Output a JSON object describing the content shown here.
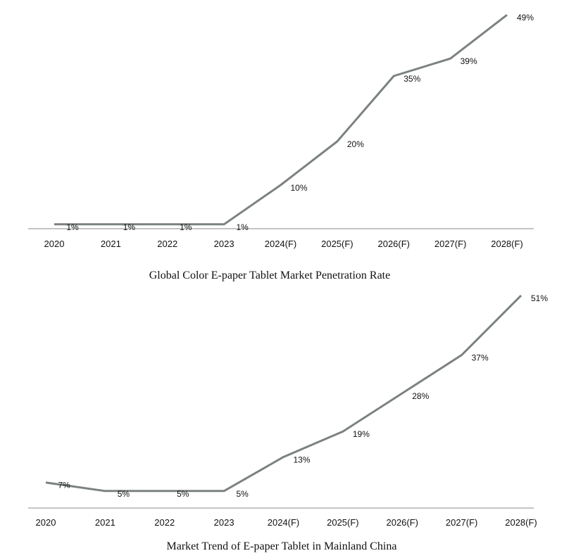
{
  "chart_data": [
    {
      "type": "line",
      "title": "Global Color E-paper Tablet Market Penetration Rate",
      "categories": [
        "2020",
        "2021",
        "2022",
        "2023",
        "2024(F)",
        "2025(F)",
        "2026(F)",
        "2027(F)",
        "2028(F)"
      ],
      "values": [
        1,
        1,
        1,
        1,
        10,
        20,
        35,
        39,
        49
      ],
      "data_labels": [
        "1%",
        "1%",
        "1%",
        "1%",
        "10%",
        "20%",
        "35%",
        "39%",
        "49%"
      ],
      "unit": "%",
      "ylim": [
        0,
        50
      ],
      "grid": false,
      "line_color": "#7b8280"
    },
    {
      "type": "line",
      "title": "Market Trend of E-paper Tablet in Mainland China",
      "categories": [
        "2020",
        "2021",
        "2022",
        "2023",
        "2024(F)",
        "2025(F)",
        "2026(F)",
        "2027(F)",
        "2028(F)"
      ],
      "values": [
        7,
        5,
        5,
        5,
        13,
        19,
        28,
        37,
        51
      ],
      "data_labels": [
        "7%",
        "5%",
        "5%",
        "5%",
        "13%",
        "19%",
        "28%",
        "37%",
        "51%"
      ],
      "unit": "%",
      "ylim": [
        0,
        52
      ],
      "grid": false,
      "line_color": "#7b8280"
    }
  ]
}
